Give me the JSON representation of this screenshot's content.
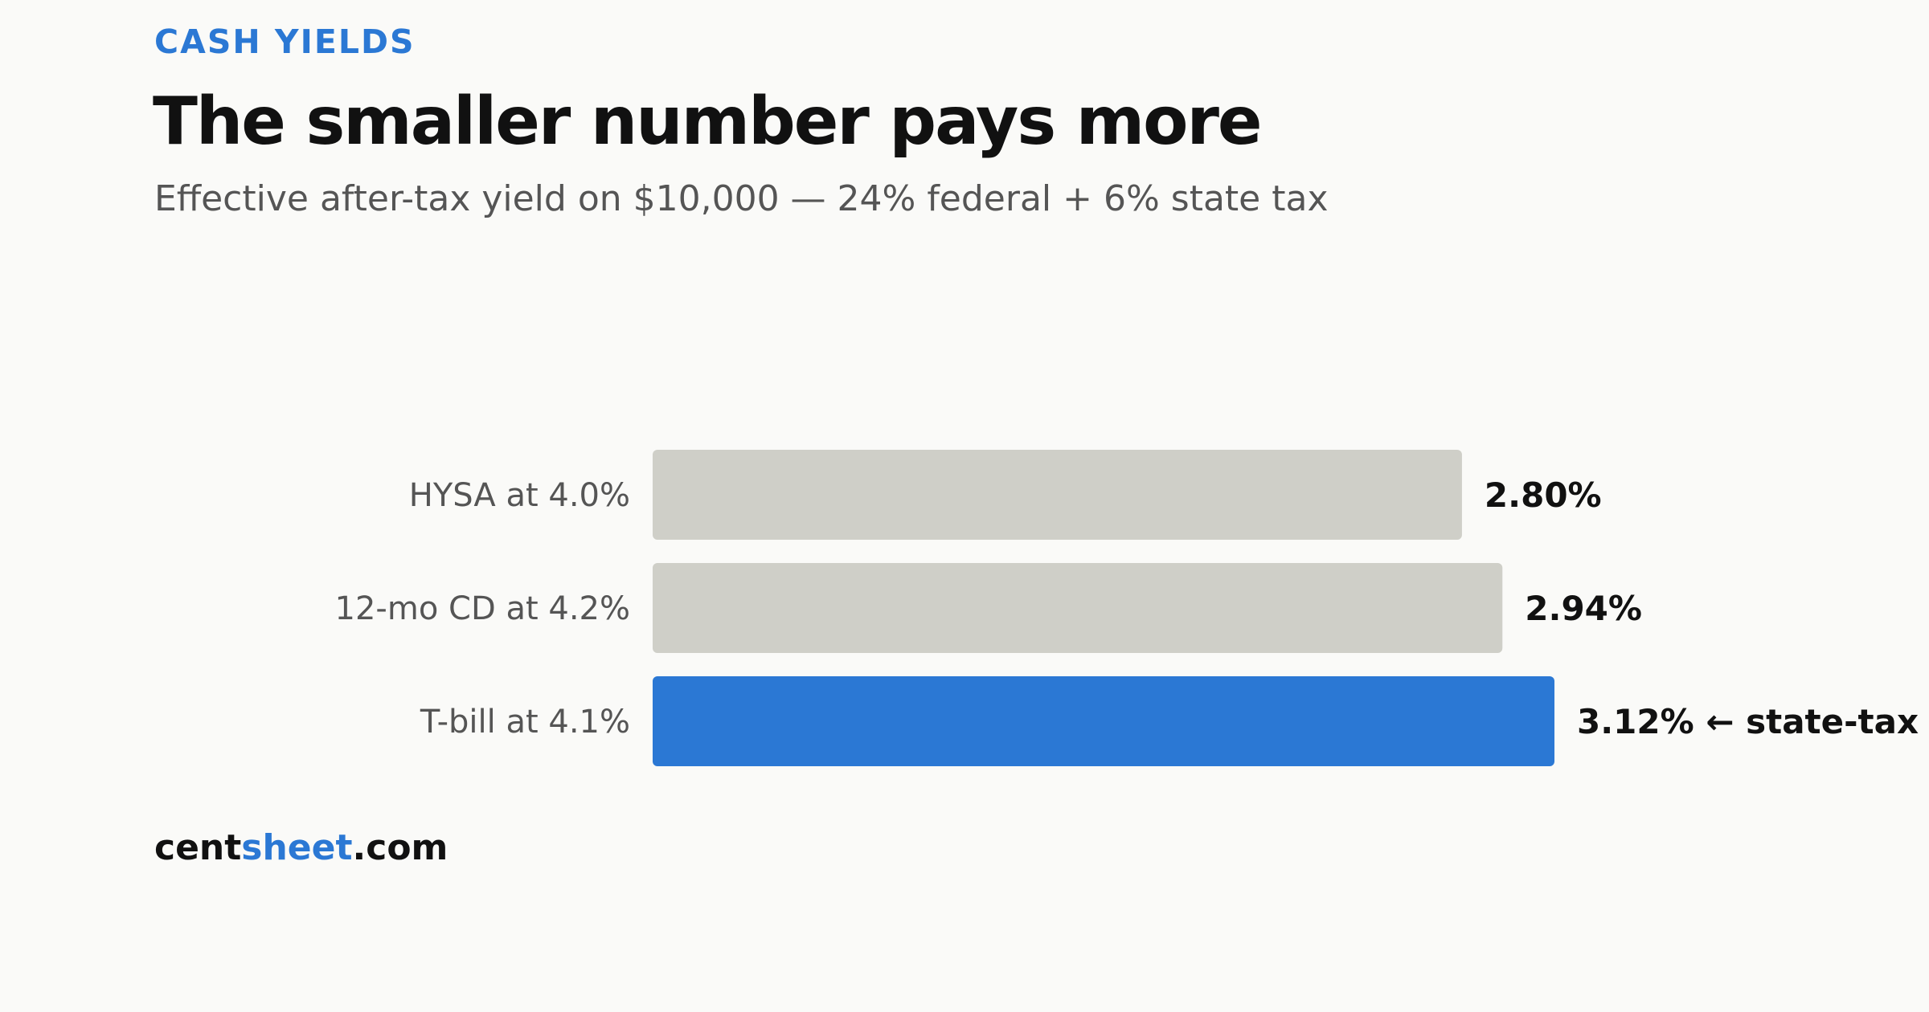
{
  "header": {
    "eyebrow": "CASH YIELDS",
    "title": "The smaller number pays more",
    "subtitle": "Effective after-tax yield on $10,000 — 24% federal + 6% state tax"
  },
  "chart_data": {
    "type": "bar",
    "orientation": "horizontal",
    "categories": [
      "HYSA at 4.0%",
      "12-mo CD at 4.2%",
      "T-bill at 4.1%"
    ],
    "values": [
      2.8,
      2.94,
      3.12
    ],
    "value_labels": [
      "2.80%",
      "2.94%",
      "3.12% ← state-tax"
    ],
    "highlight_index": 2,
    "xlim": [
      0,
      3.12
    ],
    "grid": false,
    "colors": {
      "default": "#cfcfc8",
      "highlight": "#2b78d4"
    }
  },
  "footer": {
    "brand_part1": "cent",
    "brand_part2": "sheet",
    "brand_part3": ".com"
  }
}
